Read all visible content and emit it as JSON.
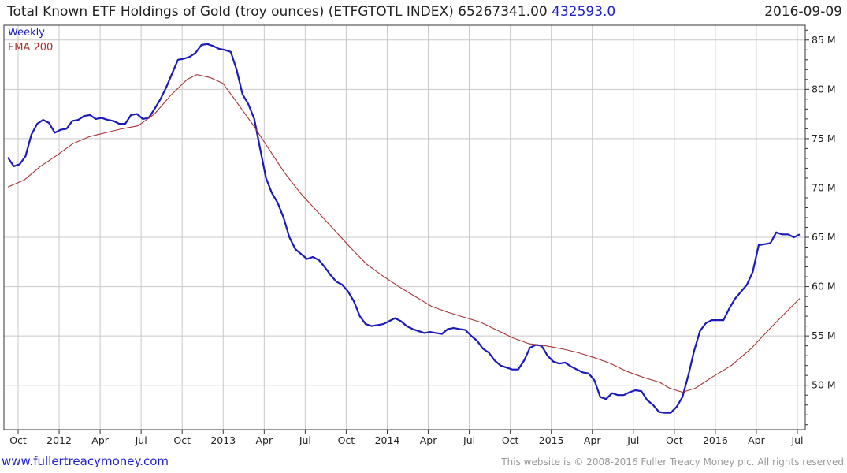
{
  "header": {
    "title_prefix": "Total Known ETF Holdings of Gold (troy ounces) (ETFGTOTL INDEX) 65267341.00",
    "change": "432593.0",
    "date": "2016-09-09"
  },
  "footer": {
    "left": "www.fullertreacymoney.com",
    "right": "This website is © 2008-2016 Fuller Treacy Money plc. All rights reserved"
  },
  "colors": {
    "weekly": "#1a1ab8",
    "ema": "#a83232",
    "grid": "#c8c8c8",
    "axis": "#333333"
  },
  "chart_data": {
    "type": "line",
    "title": "Total Known ETF Holdings of Gold (troy ounces) (ETFGTOTL INDEX)",
    "ylim": [
      45.5,
      86.5
    ],
    "y_unit": "M",
    "xlim": [
      0,
      243.5
    ],
    "y_ticks": [
      {
        "value": 50,
        "label": "50 M"
      },
      {
        "value": 55,
        "label": "55 M"
      },
      {
        "value": 60,
        "label": "60 M"
      },
      {
        "value": 65,
        "label": "65 M"
      },
      {
        "value": 70,
        "label": "70 M"
      },
      {
        "value": 75,
        "label": "75 M"
      },
      {
        "value": 80,
        "label": "80 M"
      },
      {
        "value": 85,
        "label": "85 M"
      }
    ],
    "x_ticks": [
      {
        "week": 2.5,
        "label": "Oct"
      },
      {
        "week": 15.5,
        "label": "2012"
      },
      {
        "week": 28.5,
        "label": "Apr"
      },
      {
        "week": 41.5,
        "label": "Jul"
      },
      {
        "week": 54.5,
        "label": "Oct"
      },
      {
        "week": 67.5,
        "label": "2013"
      },
      {
        "week": 80.5,
        "label": "Apr"
      },
      {
        "week": 93.5,
        "label": "Jul"
      },
      {
        "week": 106.5,
        "label": "Oct"
      },
      {
        "week": 119.5,
        "label": "2014"
      },
      {
        "week": 132.5,
        "label": "Apr"
      },
      {
        "week": 145.5,
        "label": "Jul"
      },
      {
        "week": 158.5,
        "label": "Oct"
      },
      {
        "week": 171.5,
        "label": "2015"
      },
      {
        "week": 184.5,
        "label": "Apr"
      },
      {
        "week": 197.5,
        "label": "Jul"
      },
      {
        "week": 210.5,
        "label": "Oct"
      },
      {
        "week": 223.5,
        "label": "2016"
      },
      {
        "week": 236.5,
        "label": "Apr"
      },
      {
        "week": 249.5,
        "label": "Jul"
      }
    ],
    "series": [
      {
        "name": "Weekly",
        "points": [
          [
            0,
            73.1
          ],
          [
            1,
            72.2
          ],
          [
            2,
            72.4
          ],
          [
            3,
            73.2
          ],
          [
            4,
            75.4
          ],
          [
            5,
            76.5
          ],
          [
            6,
            76.9
          ],
          [
            7,
            76.6
          ],
          [
            8,
            75.6
          ],
          [
            9,
            75.9
          ],
          [
            10,
            76.0
          ],
          [
            11,
            76.8
          ],
          [
            12,
            76.9
          ],
          [
            13,
            77.3
          ],
          [
            14,
            77.4
          ],
          [
            15,
            77.0
          ],
          [
            16,
            77.1
          ],
          [
            17,
            76.9
          ],
          [
            18,
            76.8
          ],
          [
            19,
            76.5
          ],
          [
            20,
            76.5
          ],
          [
            21,
            77.4
          ],
          [
            22,
            77.5
          ],
          [
            23,
            77.0
          ],
          [
            24,
            77.1
          ],
          [
            25,
            78.0
          ],
          [
            26,
            79.0
          ],
          [
            27,
            80.2
          ],
          [
            28,
            81.6
          ],
          [
            29,
            83.0
          ],
          [
            30,
            83.1
          ],
          [
            31,
            83.3
          ],
          [
            32,
            83.7
          ],
          [
            33,
            84.5
          ],
          [
            34,
            84.6
          ],
          [
            35,
            84.4
          ],
          [
            36,
            84.1
          ],
          [
            37,
            84.0
          ],
          [
            38,
            83.8
          ],
          [
            39,
            82.0
          ],
          [
            40,
            79.5
          ],
          [
            41,
            78.5
          ],
          [
            42,
            77.0
          ],
          [
            43,
            74.0
          ],
          [
            44,
            71.0
          ],
          [
            45,
            69.5
          ],
          [
            46,
            68.5
          ],
          [
            47,
            67.0
          ],
          [
            48,
            65.0
          ],
          [
            49,
            63.8
          ],
          [
            50,
            63.3
          ],
          [
            51,
            62.8
          ],
          [
            52,
            63.0
          ],
          [
            53,
            62.7
          ],
          [
            54,
            62.0
          ],
          [
            55,
            61.2
          ],
          [
            56,
            60.5
          ],
          [
            57,
            60.2
          ],
          [
            58,
            59.5
          ],
          [
            59,
            58.5
          ],
          [
            60,
            57.0
          ],
          [
            61,
            56.2
          ],
          [
            62,
            56.0
          ],
          [
            63,
            56.1
          ],
          [
            64,
            56.2
          ],
          [
            65,
            56.5
          ],
          [
            66,
            56.8
          ],
          [
            67,
            56.5
          ],
          [
            68,
            56.0
          ],
          [
            69,
            55.7
          ],
          [
            70,
            55.5
          ],
          [
            71,
            55.3
          ],
          [
            72,
            55.4
          ],
          [
            73,
            55.3
          ],
          [
            74,
            55.2
          ],
          [
            75,
            55.7
          ],
          [
            76,
            55.8
          ],
          [
            77,
            55.7
          ],
          [
            78,
            55.6
          ],
          [
            79,
            55.0
          ],
          [
            80,
            54.5
          ],
          [
            81,
            53.7
          ],
          [
            82,
            53.3
          ],
          [
            83,
            52.5
          ],
          [
            84,
            52.0
          ],
          [
            85,
            51.8
          ],
          [
            86,
            51.6
          ],
          [
            87,
            51.6
          ],
          [
            88,
            52.5
          ],
          [
            89,
            53.8
          ],
          [
            90,
            54.1
          ],
          [
            91,
            54.0
          ],
          [
            92,
            53.0
          ],
          [
            93,
            52.4
          ],
          [
            94,
            52.2
          ],
          [
            95,
            52.3
          ],
          [
            96,
            51.9
          ],
          [
            97,
            51.6
          ],
          [
            98,
            51.3
          ],
          [
            99,
            51.2
          ],
          [
            100,
            50.5
          ],
          [
            101,
            48.8
          ],
          [
            102,
            48.6
          ],
          [
            103,
            49.2
          ],
          [
            104,
            49.0
          ],
          [
            105,
            49.0
          ],
          [
            106,
            49.3
          ],
          [
            107,
            49.5
          ],
          [
            108,
            49.4
          ],
          [
            109,
            48.5
          ],
          [
            110,
            48.0
          ],
          [
            111,
            47.3
          ],
          [
            112,
            47.2
          ],
          [
            113,
            47.2
          ],
          [
            114,
            47.8
          ],
          [
            115,
            48.8
          ],
          [
            116,
            51.0
          ],
          [
            117,
            53.5
          ],
          [
            118,
            55.5
          ],
          [
            119,
            56.3
          ],
          [
            120,
            56.6
          ],
          [
            121,
            56.6
          ],
          [
            122,
            56.6
          ],
          [
            123,
            57.8
          ],
          [
            124,
            58.8
          ],
          [
            125,
            59.5
          ],
          [
            126,
            60.2
          ],
          [
            127,
            61.5
          ],
          [
            128,
            64.2
          ],
          [
            129,
            64.3
          ],
          [
            130,
            64.4
          ],
          [
            131,
            65.5
          ],
          [
            132,
            65.3
          ],
          [
            133,
            65.3
          ],
          [
            134,
            65.0
          ],
          [
            135,
            65.3
          ]
        ],
        "x_scale": 1.8
      },
      {
        "name": "EMA 200",
        "points": [
          [
            0,
            70.1
          ],
          [
            5,
            70.8
          ],
          [
            10,
            72.2
          ],
          [
            15,
            73.3
          ],
          [
            20,
            74.5
          ],
          [
            25,
            75.2
          ],
          [
            30,
            75.6
          ],
          [
            35,
            76.0
          ],
          [
            40,
            76.3
          ],
          [
            45,
            77.5
          ],
          [
            50,
            79.4
          ],
          [
            55,
            81.0
          ],
          [
            58,
            81.5
          ],
          [
            62,
            81.2
          ],
          [
            66,
            80.6
          ],
          [
            70,
            78.8
          ],
          [
            75,
            76.5
          ],
          [
            80,
            74.0
          ],
          [
            85,
            71.5
          ],
          [
            90,
            69.4
          ],
          [
            95,
            67.6
          ],
          [
            100,
            65.8
          ],
          [
            105,
            64.0
          ],
          [
            110,
            62.3
          ],
          [
            115,
            61.1
          ],
          [
            120,
            60.0
          ],
          [
            125,
            59.0
          ],
          [
            130,
            58.0
          ],
          [
            135,
            57.4
          ],
          [
            140,
            56.9
          ],
          [
            145,
            56.4
          ],
          [
            150,
            55.6
          ],
          [
            155,
            54.8
          ],
          [
            160,
            54.2
          ],
          [
            165,
            54.0
          ],
          [
            170,
            53.7
          ],
          [
            175,
            53.3
          ],
          [
            180,
            52.8
          ],
          [
            185,
            52.2
          ],
          [
            190,
            51.4
          ],
          [
            195,
            50.8
          ],
          [
            200,
            50.3
          ],
          [
            203,
            49.7
          ],
          [
            207,
            49.3
          ],
          [
            211,
            49.7
          ],
          [
            216,
            50.8
          ],
          [
            222,
            52.0
          ],
          [
            228,
            53.7
          ],
          [
            234,
            55.8
          ],
          [
            240,
            57.8
          ],
          [
            243,
            58.8
          ]
        ],
        "x_scale": 1.0
      }
    ],
    "legend": [
      "Weekly",
      "EMA 200"
    ]
  }
}
